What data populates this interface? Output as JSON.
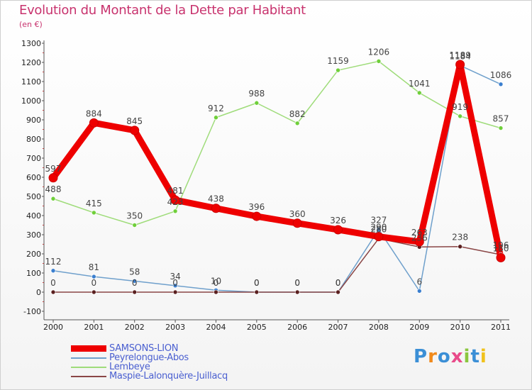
{
  "title": "Evolution du Montant de la Dette par Habitant",
  "subtitle": "(en €)",
  "logo_text": "Proxiti",
  "logo_colors": [
    "#3b8fd6",
    "#f08a1c",
    "#3b8fd6",
    "#e94b8a",
    "#8bc63f",
    "#3b8fd6",
    "#f0c21c"
  ],
  "chart_data": {
    "type": "line",
    "x": [
      "2000",
      "2001",
      "2002",
      "2003",
      "2004",
      "2005",
      "2006",
      "2007",
      "2008",
      "2009",
      "2010",
      "2011"
    ],
    "ylim": [
      -100,
      1300
    ],
    "yticks": [
      "1300",
      "1200",
      "1100",
      "1000",
      "900",
      "800",
      "700",
      "600",
      "500",
      "400",
      "300",
      "200",
      "100",
      "0",
      "-100"
    ],
    "grid": false,
    "legend_position": "bottom-left",
    "series": [
      {
        "name": "SAMSONS-LION",
        "color": "#ee0000",
        "marker": "#ee0000",
        "values": [
          597,
          884,
          845,
          481,
          438,
          396,
          360,
          326,
          290,
          263,
          1189,
          180
        ],
        "labels": [
          "597",
          "884",
          "845",
          "481",
          "438",
          "396",
          "360",
          "326",
          "290",
          "263",
          "1189",
          "180"
        ]
      },
      {
        "name": "Peyrelongue-Abos",
        "color": "#6fa0cc",
        "marker": "#3b7fcf",
        "values": [
          112,
          81,
          58,
          34,
          10,
          0,
          0,
          0,
          327,
          6,
          1184,
          1086
        ],
        "labels": [
          "112",
          "81",
          "58",
          "34",
          "10",
          "0",
          "0",
          "0",
          "327",
          "6",
          "1184",
          "1086"
        ]
      },
      {
        "name": "Lembeye",
        "color": "#9fdc7a",
        "marker": "#6fcf3a",
        "values": [
          488,
          415,
          350,
          423,
          912,
          988,
          882,
          1159,
          1206,
          1041,
          919,
          857
        ],
        "labels": [
          "488",
          "415",
          "350",
          "423",
          "912",
          "988",
          "882",
          "1159",
          "1206",
          "1041",
          "919",
          "857"
        ]
      },
      {
        "name": "Maspie-Lalonquère-Juillacq",
        "color": "#8a4646",
        "marker": "#5a1f1f",
        "values": [
          0,
          0,
          0,
          0,
          0,
          0,
          0,
          0,
          280,
          236,
          238,
          196
        ],
        "labels": [
          "0",
          "0",
          "0",
          "0",
          "0",
          "0",
          "0",
          "0",
          "280",
          "236",
          "238",
          "196"
        ]
      }
    ]
  }
}
